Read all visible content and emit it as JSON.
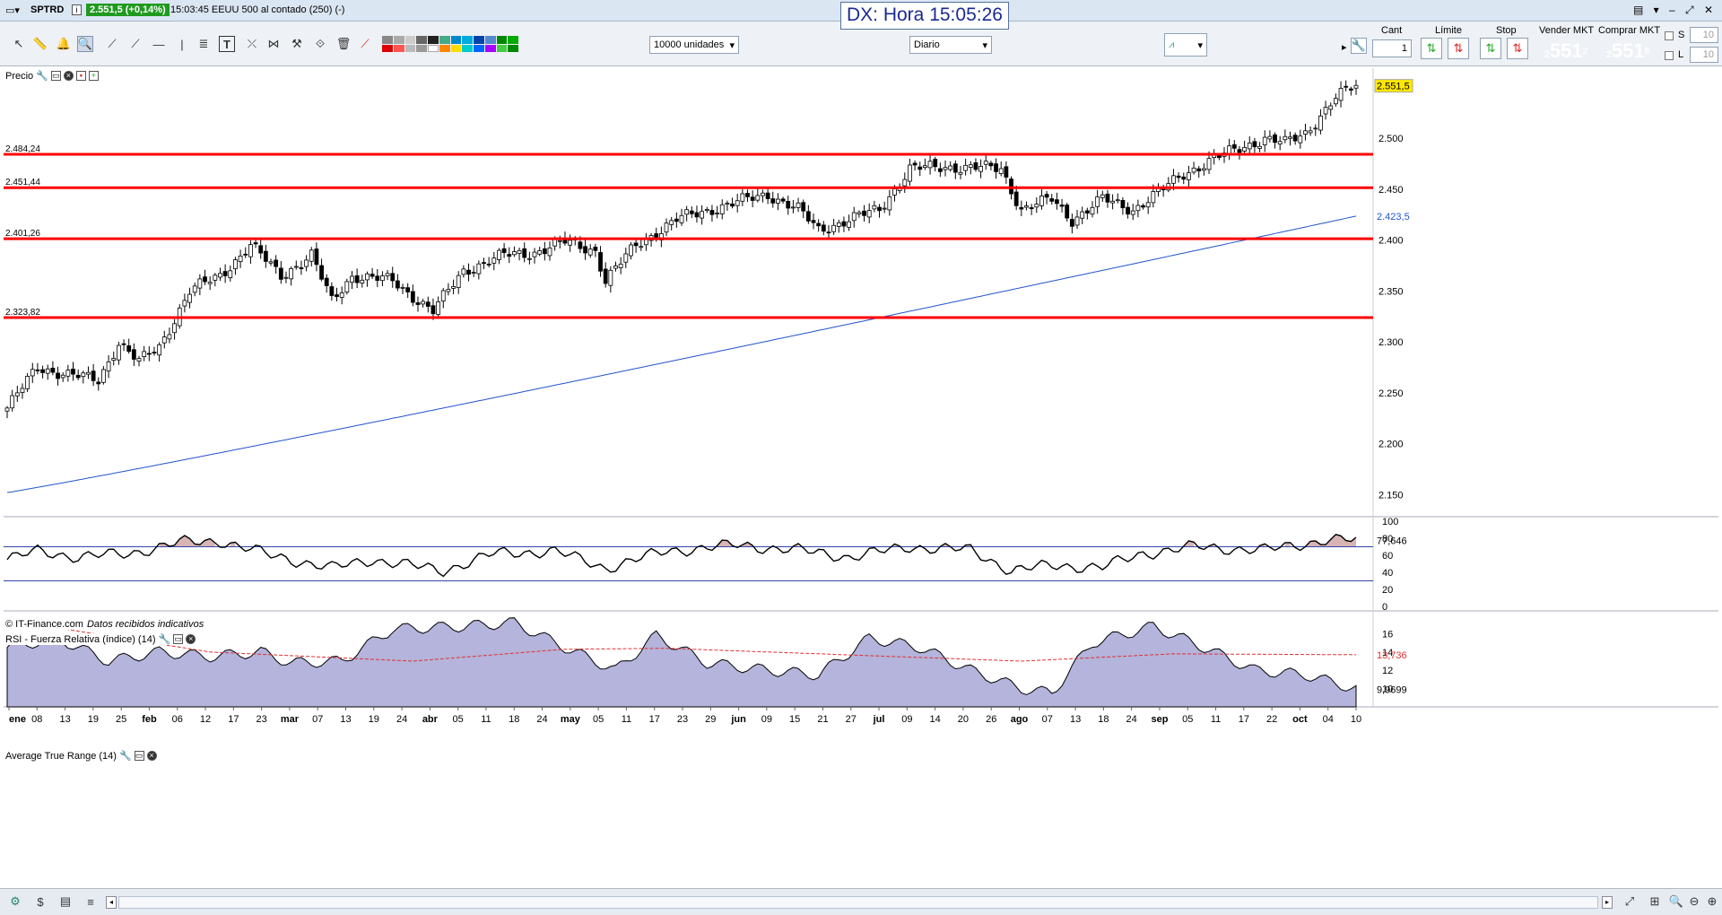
{
  "window": {
    "symbol": "SPTRD",
    "price_badge": "2.551,5 (+0,14%)",
    "info": "15:03:45 EEUU 500 al contado (250) (-)",
    "clock": "DX: Hora 15:05:26"
  },
  "toolbar": {
    "units": "10000 unidades",
    "period": "Diario",
    "cant_label": "Cant",
    "cant_value": "1",
    "limite_label": "Límite",
    "stop_label": "Stop",
    "sell_label": "Vender MKT",
    "buy_label": "Comprar MKT",
    "sell_prefix": "2",
    "sell_main": "551",
    "sell_sup": "2",
    "buy_prefix": "2",
    "buy_main": "551",
    "buy_sup": "8",
    "s_label": "S",
    "l_label": "L",
    "s_value": "10",
    "l_value": "10",
    "sell_color": "#e02b2b",
    "buy_color": "#2aa62a"
  },
  "price_panel": {
    "label": "Precio",
    "credit": "© IT-Finance.com",
    "credit_note": "Datos recibidos indicativos",
    "current_price_label": "2.551,5",
    "ma_label": "2.423,5",
    "y_ticks": [
      "2.500",
      "2.450",
      "2.400",
      "2.350",
      "2.300",
      "2.250",
      "2.200",
      "2.150"
    ],
    "levels": [
      "2.484,24",
      "2.451,44",
      "2.401,26",
      "2.323,82"
    ],
    "level_values": [
      2484.24,
      2451.44,
      2401.26,
      2323.82
    ],
    "level_color": "#ff0000",
    "ma_color": "#2255cc"
  },
  "rsi_panel": {
    "label": "RSI - Fuerza Relativa (índice) (14)",
    "y_ticks": [
      "100",
      "80",
      "60",
      "40",
      "20",
      "0"
    ],
    "current": "77,646"
  },
  "atr_panel": {
    "label": "Average True Range (14)",
    "y_ticks": [
      "16",
      "14",
      "12",
      "10"
    ],
    "avg_label": "13,736",
    "current": "9,9699",
    "fill_color": "#b4b4dc"
  },
  "x_axis": [
    {
      "t": "ene",
      "b": true
    },
    {
      "t": "08"
    },
    {
      "t": "13"
    },
    {
      "t": "19"
    },
    {
      "t": "25"
    },
    {
      "t": "feb",
      "b": true
    },
    {
      "t": "06"
    },
    {
      "t": "12"
    },
    {
      "t": "17"
    },
    {
      "t": "23"
    },
    {
      "t": "mar",
      "b": true
    },
    {
      "t": "07"
    },
    {
      "t": "13"
    },
    {
      "t": "19"
    },
    {
      "t": "24"
    },
    {
      "t": "abr",
      "b": true
    },
    {
      "t": "05"
    },
    {
      "t": "11"
    },
    {
      "t": "18"
    },
    {
      "t": "24"
    },
    {
      "t": "may",
      "b": true
    },
    {
      "t": "05"
    },
    {
      "t": "11"
    },
    {
      "t": "17"
    },
    {
      "t": "23"
    },
    {
      "t": "29"
    },
    {
      "t": "jun",
      "b": true
    },
    {
      "t": "09"
    },
    {
      "t": "15"
    },
    {
      "t": "21"
    },
    {
      "t": "27"
    },
    {
      "t": "jul",
      "b": true
    },
    {
      "t": "09"
    },
    {
      "t": "14"
    },
    {
      "t": "20"
    },
    {
      "t": "26"
    },
    {
      "t": "ago",
      "b": true
    },
    {
      "t": "07"
    },
    {
      "t": "13"
    },
    {
      "t": "18"
    },
    {
      "t": "24"
    },
    {
      "t": "sep",
      "b": true
    },
    {
      "t": "05"
    },
    {
      "t": "11"
    },
    {
      "t": "17"
    },
    {
      "t": "22"
    },
    {
      "t": "oct",
      "b": true
    },
    {
      "t": "04"
    },
    {
      "t": "10"
    }
  ],
  "chart_data": {
    "type": "line",
    "title": "",
    "price_range": [
      2130,
      2560
    ],
    "price_anchors": [
      [
        0,
        2235
      ],
      [
        6,
        2275
      ],
      [
        12,
        2268
      ],
      [
        18,
        2262
      ],
      [
        22,
        2300
      ],
      [
        26,
        2280
      ],
      [
        30,
        2295
      ],
      [
        36,
        2350
      ],
      [
        42,
        2365
      ],
      [
        48,
        2395
      ],
      [
        54,
        2365
      ],
      [
        60,
        2385
      ],
      [
        64,
        2340
      ],
      [
        68,
        2365
      ],
      [
        76,
        2360
      ],
      [
        84,
        2330
      ],
      [
        90,
        2370
      ],
      [
        98,
        2385
      ],
      [
        104,
        2388
      ],
      [
        110,
        2398
      ],
      [
        116,
        2390
      ],
      [
        118,
        2360
      ],
      [
        124,
        2395
      ],
      [
        132,
        2420
      ],
      [
        140,
        2432
      ],
      [
        150,
        2445
      ],
      [
        156,
        2430
      ],
      [
        160,
        2410
      ],
      [
        166,
        2420
      ],
      [
        172,
        2430
      ],
      [
        178,
        2470
      ],
      [
        186,
        2472
      ],
      [
        196,
        2470
      ],
      [
        200,
        2430
      ],
      [
        206,
        2440
      ],
      [
        210,
        2420
      ],
      [
        216,
        2440
      ],
      [
        222,
        2430
      ],
      [
        228,
        2450
      ],
      [
        232,
        2465
      ],
      [
        238,
        2480
      ],
      [
        248,
        2500
      ],
      [
        252,
        2495
      ],
      [
        256,
        2505
      ],
      [
        262,
        2540
      ],
      [
        266,
        2551.5
      ]
    ],
    "ma200": {
      "start": 2152,
      "end": 2423.5
    },
    "rsi_anchors": [
      [
        0,
        55
      ],
      [
        6,
        65
      ],
      [
        14,
        58
      ],
      [
        24,
        62
      ],
      [
        34,
        75
      ],
      [
        42,
        77
      ],
      [
        52,
        60
      ],
      [
        64,
        45
      ],
      [
        72,
        55
      ],
      [
        86,
        42
      ],
      [
        96,
        62
      ],
      [
        108,
        65
      ],
      [
        118,
        45
      ],
      [
        130,
        65
      ],
      [
        144,
        72
      ],
      [
        156,
        66
      ],
      [
        166,
        58
      ],
      [
        178,
        70
      ],
      [
        190,
        66
      ],
      [
        198,
        42
      ],
      [
        206,
        48
      ],
      [
        216,
        46
      ],
      [
        224,
        62
      ],
      [
        234,
        70
      ],
      [
        248,
        66
      ],
      [
        260,
        78
      ],
      [
        266,
        77.6
      ]
    ],
    "atr_anchors": [
      [
        0,
        14.5
      ],
      [
        10,
        15.5
      ],
      [
        20,
        13
      ],
      [
        30,
        14
      ],
      [
        40,
        13.5
      ],
      [
        50,
        14
      ],
      [
        56,
        12.8
      ],
      [
        66,
        13
      ],
      [
        76,
        16.5
      ],
      [
        90,
        16.8
      ],
      [
        100,
        17.2
      ],
      [
        110,
        14.5
      ],
      [
        120,
        12
      ],
      [
        128,
        15.8
      ],
      [
        138,
        12.8
      ],
      [
        150,
        12
      ],
      [
        160,
        11.5
      ],
      [
        170,
        15.5
      ],
      [
        180,
        14.5
      ],
      [
        190,
        12
      ],
      [
        200,
        10
      ],
      [
        206,
        9.5
      ],
      [
        214,
        15
      ],
      [
        226,
        16.8
      ],
      [
        236,
        14.5
      ],
      [
        246,
        12
      ],
      [
        256,
        11.5
      ],
      [
        266,
        9.97
      ]
    ],
    "atr_avg_anchors": [
      [
        0,
        17.5
      ],
      [
        40,
        14
      ],
      [
        80,
        13
      ],
      [
        110,
        14.3
      ],
      [
        130,
        14.4
      ],
      [
        170,
        13.6
      ],
      [
        200,
        13
      ],
      [
        230,
        13.8
      ],
      [
        266,
        13.7
      ]
    ]
  }
}
